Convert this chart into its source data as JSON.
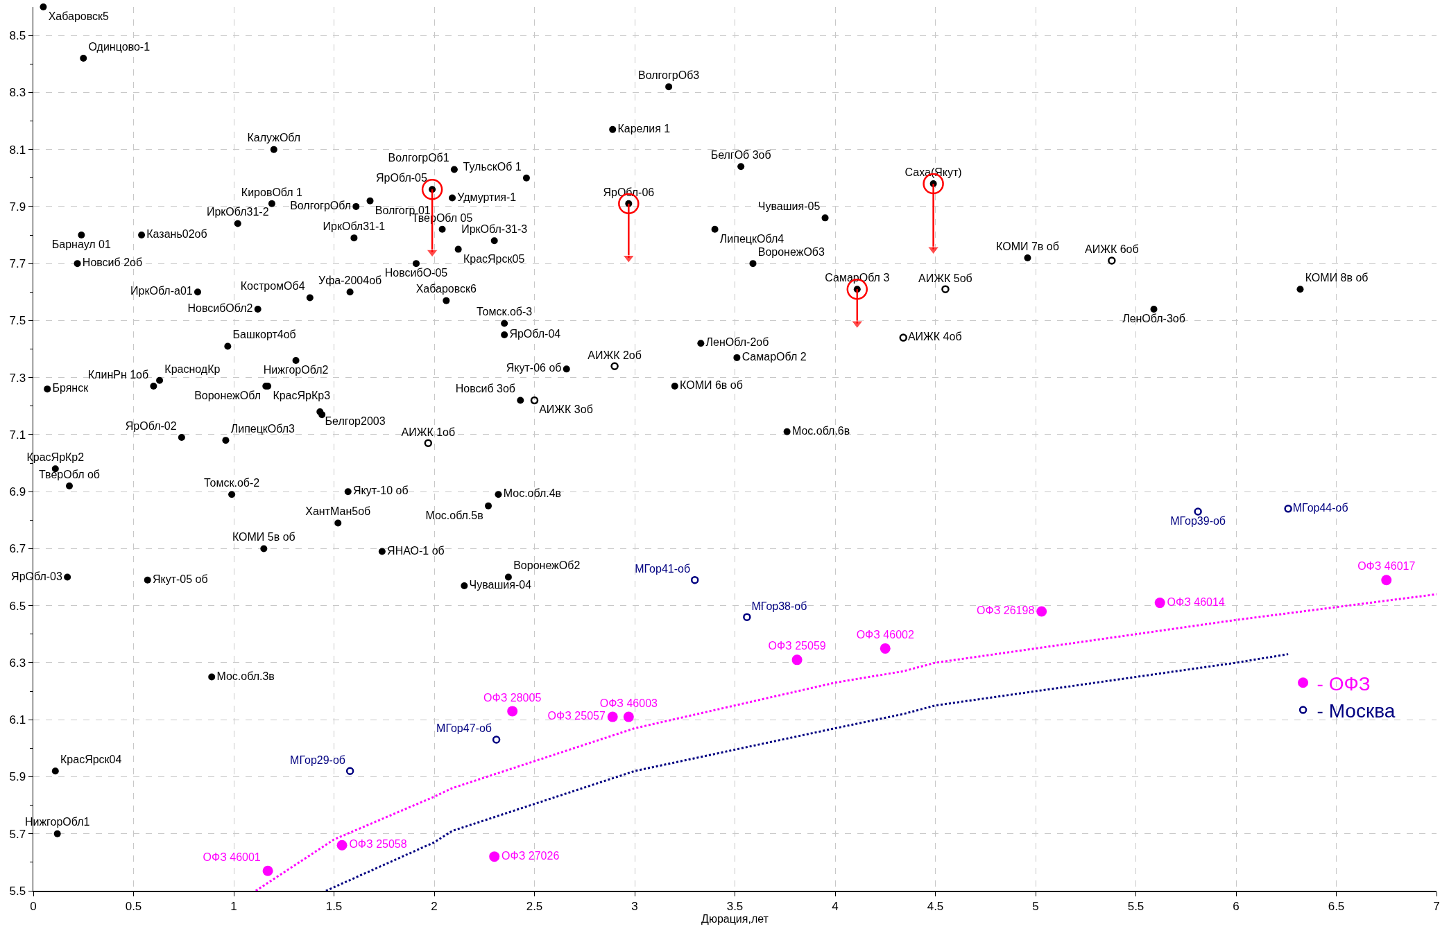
{
  "chart_data": {
    "type": "scatter",
    "xlabel": "Дюрация,лет",
    "xlim": [
      0,
      7
    ],
    "xticks": [
      0,
      0.5,
      1,
      1.5,
      2,
      2.5,
      3,
      3.5,
      4,
      4.5,
      5,
      5.5,
      6,
      6.5,
      7
    ],
    "ylim": [
      5.5,
      8.6
    ],
    "yticks": [
      5.5,
      {
        "value": 5.6,
        "label": null
      },
      5.7,
      {
        "value": 5.8,
        "label": null
      },
      5.9,
      {
        "value": 6.0,
        "label": null
      },
      6.1,
      {
        "value": 6.2,
        "label": null
      },
      6.3,
      {
        "value": 6.4,
        "label": null
      },
      6.5,
      {
        "value": 6.6,
        "label": null
      },
      6.7,
      {
        "value": 6.8,
        "label": null
      },
      6.9,
      {
        "value": 7.0,
        "label": null
      },
      7.1,
      {
        "value": 7.2,
        "label": null
      },
      7.3,
      {
        "value": 7.4,
        "label": null
      },
      7.5,
      {
        "value": 7.6,
        "label": null
      },
      7.7,
      {
        "value": 7.8,
        "label": null
      },
      7.9,
      {
        "value": 8.0,
        "label": null
      },
      8.1,
      {
        "value": 8.2,
        "label": null
      },
      8.3,
      {
        "value": 8.4,
        "label": null
      },
      8.5
    ],
    "grid": true,
    "legend": "bottom right",
    "marker": "circle",
    "series": [
      {
        "type": "line",
        "color": "#ff00ff",
        "line_style": "dotted",
        "marker": "none",
        "x": [
          1.11,
          1.5,
          2,
          2.09,
          3,
          4,
          4.34,
          4.5,
          5,
          6,
          7
        ],
        "values": [
          5.5,
          5.68,
          5.83,
          5.86,
          6.07,
          6.23,
          6.27,
          6.3,
          6.35,
          6.45,
          6.54
        ]
      },
      {
        "type": "line",
        "color": "#000080",
        "line_style": "dotted",
        "marker": "none",
        "x": [
          1.46,
          2,
          2.09,
          3,
          4,
          4.34,
          4.5,
          5,
          6,
          6.26
        ],
        "values": [
          5.5,
          5.67,
          5.71,
          5.92,
          6.07,
          6.12,
          6.15,
          6.2,
          6.3,
          6.33
        ]
      },
      {
        "color": "#000000",
        "x": [
          0.05,
          0.25,
          1.2,
          2.1,
          1.99,
          2.09,
          1.19,
          1.61,
          1.68,
          1.02,
          2.04,
          1.6,
          0.24,
          0.54,
          0.22,
          2.12,
          1.91,
          0.82,
          1.38,
          1.58,
          1.12,
          2.06,
          0.97,
          1.31,
          0.07,
          0.6,
          0.63,
          1.16,
          1.17,
          1.43,
          1.44,
          0.74,
          0.96,
          2.46,
          3.17,
          2.89,
          3.53,
          2.97,
          4.49,
          3.95,
          3.4,
          3.59,
          2.3,
          4.11,
          2.35,
          2.35,
          3.33,
          3.51,
          2.66,
          3.2,
          2.43,
          3.76,
          4.96,
          6.32,
          5.59,
          0.11,
          0.18,
          0.99,
          1.57,
          1.52,
          1.15,
          1.74,
          0.17,
          0.57,
          2.15,
          0.89,
          0.11,
          0.12,
          2.27,
          2.32,
          2.37
        ],
        "values": [
          8.6,
          8.42,
          8.1,
          8.03,
          7.96,
          7.93,
          7.91,
          7.9,
          7.92,
          7.84,
          7.82,
          7.79,
          7.8,
          7.8,
          7.7,
          7.75,
          7.7,
          7.6,
          7.58,
          7.6,
          7.54,
          7.57,
          7.41,
          7.36,
          7.26,
          7.27,
          7.29,
          7.27,
          7.27,
          7.18,
          7.17,
          7.09,
          7.08,
          8.0,
          8.32,
          8.17,
          8.04,
          7.91,
          7.98,
          7.86,
          7.82,
          7.7,
          7.78,
          7.61,
          7.49,
          7.45,
          7.42,
          7.37,
          7.33,
          7.27,
          7.22,
          7.11,
          7.72,
          7.61,
          7.54,
          6.98,
          6.92,
          6.89,
          6.9,
          6.79,
          6.7,
          6.69,
          6.6,
          6.59,
          6.57,
          6.25,
          5.92,
          5.7,
          6.85,
          6.89,
          6.6
        ],
        "value_labels": [
          "Хабаровск5",
          "Одинцово-1",
          "КалужОбл",
          "ВолгогрОб1",
          "ЯрОбл-05",
          "Удмуртия-1",
          "КировОбл 1",
          "ВолгогрОбл",
          "Волгогр 01",
          "ИркОбл31-2",
          "ТверОбл 05",
          "ИркОбл31-1",
          "Барнаул 01",
          "Казань02об",
          "Новсиб 2об",
          "КрасЯрск05",
          "НовсибО-05",
          "ИркОбл-а01",
          "КостромОб4",
          "Уфа-2004об",
          "НовсибОбл2",
          "Хабаровск6",
          "Башкорт4об",
          "НижгорОбл2",
          "Брянск",
          "КлинРн 1об",
          "КраснодКр",
          "ВоронежОбл",
          "КрасЯрКр3",
          "Белгор2003",
          null,
          "ЯрОбл-02",
          "ЛипецкОбл3",
          "ТульскОб 1",
          "ВолгогрОб3",
          "Карелия 1",
          "БелгОб 3об",
          "ЯрОбл-06",
          "Саха(Якут)",
          "Чувашия-05",
          "ЛипецкОбл4",
          "ВоронежОб3",
          "ИркОбл-31-3",
          "СамарОбл 3",
          "Томск.об-3",
          "ЯрОбл-04",
          "ЛенОбл-2об",
          "СамарОбл 2",
          "Якут-06 об",
          "КОМИ 6в об",
          "Новсиб 3об",
          "Мос.обл.6в",
          "КОМИ 7в об",
          "КОМИ 8в об",
          "ЛенОбл-3об",
          "КрасЯрКр2",
          "ТверОбл об",
          "Томск.об-2",
          "Якут-10 об",
          "ХантМан5об",
          "КОМИ 5в об",
          "ЯНАО-1 об",
          "ЯрОбл-03",
          "Якут-05 об",
          "Чувашия-04",
          "Мос.обл.3в",
          "КрасЯрск04",
          "НижгорОбл1",
          "Мос.обл.5в",
          "Мос.обл.4в",
          "ВоронежОб2"
        ]
      },
      {
        "color": "#000000",
        "x": [
          1.97,
          2.9,
          2.5,
          4.34,
          4.55,
          5.38
        ],
        "values": [
          7.07,
          7.34,
          7.22,
          7.44,
          7.61,
          7.71
        ],
        "value_labels": [
          "АИЖК 1об",
          "АИЖК 2об",
          "АИЖК 3об",
          "АИЖК 4об",
          "АИЖК 5об",
          "АИЖК 6об"
        ]
      },
      {
        "name": "- Москва",
        "color": "#000080",
        "x": [
          1.58,
          2.31,
          3.3,
          3.56,
          5.81,
          6.26
        ],
        "values": [
          5.92,
          6.03,
          6.59,
          6.46,
          6.83,
          6.84
        ],
        "value_labels": [
          "МГор29-об",
          "МГор47-об",
          "МГор41-об",
          "МГор38-об",
          "МГор39-об",
          "МГор44-об"
        ]
      },
      {
        "name": "- ОФЗ",
        "color": "#ff00ff",
        "x": [
          1.17,
          1.54,
          2.3,
          2.39,
          2.89,
          2.97,
          3.81,
          4.25,
          5.03,
          5.62,
          6.75
        ],
        "values": [
          5.57,
          5.66,
          5.62,
          6.13,
          6.11,
          6.11,
          6.31,
          6.35,
          6.48,
          6.51,
          6.59
        ],
        "value_labels": [
          "ОФЗ 46001",
          "ОФЗ 25058",
          "ОФЗ 27026",
          "ОФЗ 28005",
          "ОФЗ 25057",
          "ОФЗ 46003",
          "ОФЗ 25059",
          "ОФЗ 46002",
          "ОФЗ 26198",
          "ОФЗ 46014",
          "ОФЗ 46017"
        ]
      },
      {
        "color": "#ff0000",
        "x": [
          1.99,
          2.97,
          4.49,
          4.11
        ],
        "values": [
          7.96,
          7.91,
          7.98,
          7.61
        ]
      },
      {
        "type": "line",
        "color": "#ff0000",
        "line_style": "solid",
        "marker": "triangle",
        "x": [
          1.99,
          1.99
        ],
        "values": [
          7.96,
          7.74
        ]
      },
      {
        "type": "line",
        "color": "#ff0000",
        "line_style": "solid",
        "marker": "triangle",
        "x": [
          2.97,
          2.97
        ],
        "values": [
          7.91,
          7.72
        ]
      },
      {
        "type": "line",
        "color": "#ff0000",
        "line_style": "solid",
        "marker": "triangle",
        "x": [
          4.49,
          4.49
        ],
        "values": [
          7.98,
          7.75
        ]
      },
      {
        "type": "line",
        "color": "#ff0000",
        "line_style": "solid",
        "marker": "triangle",
        "x": [
          4.11,
          4.11
        ],
        "values": [
          7.61,
          7.49
        ]
      }
    ]
  }
}
